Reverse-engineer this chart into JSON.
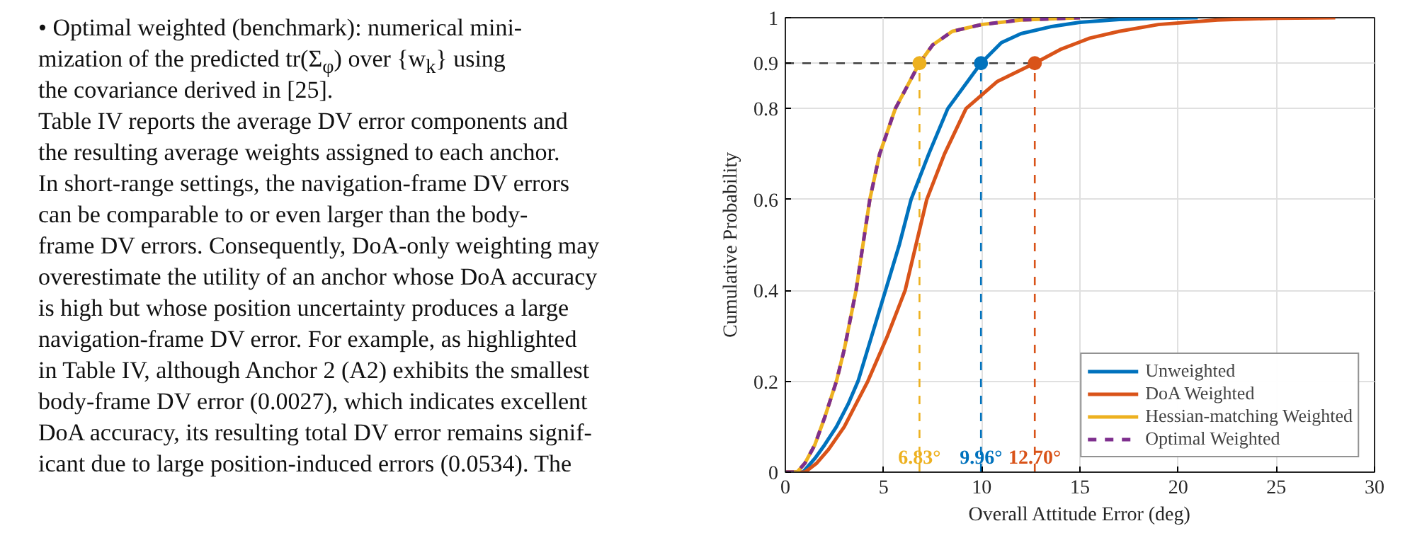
{
  "chart_data": {
    "type": "line",
    "xlabel": "Overall Attitude Error (deg)",
    "ylabel": "Cumulative Probability",
    "xlim": [
      0,
      30
    ],
    "ylim": [
      0,
      1
    ],
    "xticks": [
      0,
      5,
      10,
      15,
      20,
      25,
      30
    ],
    "yticks": [
      0,
      0.2,
      0.4,
      0.6,
      0.8,
      0.9,
      1
    ],
    "grid": true,
    "legend": "bottom right",
    "line_style": "solid",
    "series": [
      {
        "name": "Unweighted",
        "color": "#0072bd",
        "x": [
          0,
          0.9,
          1.5,
          2,
          2.6,
          3.2,
          3.7,
          4.4,
          5.1,
          5.8,
          6.4,
          7.3,
          8.27,
          9.96,
          11,
          12,
          13.5,
          15,
          17,
          19,
          21
        ],
        "values": [
          0,
          0,
          0.03,
          0.06,
          0.1,
          0.15,
          0.2,
          0.3,
          0.4,
          0.5,
          0.6,
          0.7,
          0.8,
          0.9,
          0.945,
          0.965,
          0.98,
          0.99,
          0.996,
          0.999,
          1
        ]
      },
      {
        "name": "DoA Weighted",
        "color": "#d95319",
        "x": [
          0,
          1,
          1.6,
          2.2,
          3,
          3.6,
          4.2,
          5.2,
          6.1,
          7.2,
          8.1,
          9.2,
          10.8,
          12.7,
          14,
          15.5,
          17,
          19,
          22,
          25,
          28
        ],
        "values": [
          0,
          0,
          0.02,
          0.05,
          0.1,
          0.15,
          0.2,
          0.3,
          0.4,
          0.6,
          0.7,
          0.8,
          0.86,
          0.9,
          0.93,
          0.955,
          0.97,
          0.985,
          0.995,
          0.999,
          1
        ]
      },
      {
        "name": "Hessian-matching Weighted",
        "color": "#edb120",
        "x": [
          0,
          0.6,
          1,
          1.5,
          2,
          2.6,
          3,
          3.6,
          4.3,
          4.8,
          5.6,
          6.83,
          7.5,
          8.5,
          10,
          12,
          15
        ],
        "values": [
          0,
          0,
          0.02,
          0.06,
          0.12,
          0.2,
          0.27,
          0.4,
          0.6,
          0.7,
          0.8,
          0.9,
          0.94,
          0.97,
          0.985,
          0.995,
          1
        ]
      },
      {
        "name": "Optimal Weighted",
        "color": "#7e2f8e",
        "line_style": "dashed",
        "x": [
          0,
          0.6,
          1,
          1.5,
          2,
          2.6,
          3,
          3.6,
          4.3,
          4.8,
          5.6,
          6.83,
          7.5,
          8.5,
          10,
          12,
          15
        ],
        "values": [
          0,
          0,
          0.02,
          0.06,
          0.12,
          0.2,
          0.27,
          0.4,
          0.6,
          0.7,
          0.8,
          0.9,
          0.94,
          0.97,
          0.985,
          0.995,
          1
        ]
      },
      {
        "type": "scatter",
        "marker": "circle",
        "x": [
          6.83,
          9.96,
          12.7
        ],
        "values": [
          0.9,
          0.9,
          0.9
        ],
        "colors": [
          "#edb120",
          "#0072bd",
          "#d95319"
        ]
      }
    ],
    "ref_lines": [
      {
        "axis": "y",
        "value": 0.9,
        "color": "#404040",
        "line_style": "dashed"
      },
      {
        "axis": "x",
        "value": 6.83,
        "label": "6.83°",
        "color": "#edb120",
        "line_style": "dashed"
      },
      {
        "axis": "x",
        "value": 9.96,
        "label": "9.96°",
        "color": "#0072bd",
        "line_style": "dashed"
      },
      {
        "axis": "x",
        "value": 12.7,
        "label": "12.70°",
        "color": "#d95319",
        "line_style": "dashed"
      }
    ],
    "annotations": [
      "• Optimal weighted (benchmark): numerical mini-",
      "mization of the predicted tr(Σ$_{φ}$) over {w$_{k}$} using",
      "the covariance derived in [25].",
      "Table IV reports the average DV error components and",
      "the resulting average weights assigned to each anchor.",
      "In short-range settings, the navigation-frame DV errors",
      "can be comparable to or even larger than the body-",
      "frame DV errors. Consequently, DoA-only weighting may",
      "overestimate the utility of an anchor whose DoA accuracy",
      "is high but whose position uncertainty produces a large",
      "navigation-frame DV error. For example, as highlighted",
      "in Table IV, although Anchor 2 (A2) exhibits the smallest",
      "body-frame DV error (0.0027), which indicates excellent",
      "DoA accuracy, its resulting total DV error remains signif-",
      "icant due to large position-induced errors (0.0534). The"
    ]
  }
}
